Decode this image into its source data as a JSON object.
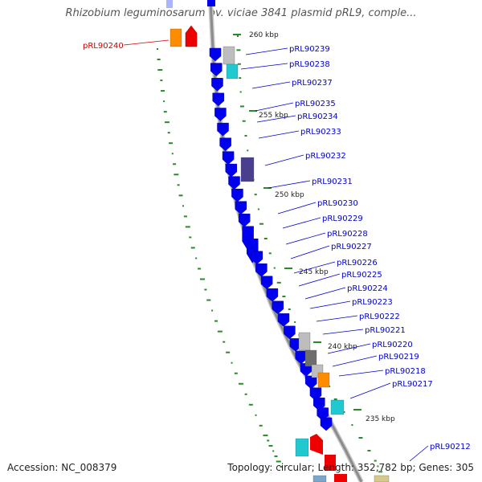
{
  "title": "Rhizobium leguminosarum bv. viciae 3841 plasmid pRL9, comple...",
  "footer": {
    "accession": "Accession: NC_008379",
    "stats": "Topology: circular; Length: 352,782 bp; Genes: 305"
  },
  "ticks": [
    "260 kbp",
    "255 kbp",
    "250 kbp",
    "245 kbp",
    "240 kbp",
    "235 kbp"
  ],
  "colors": {
    "backbone": "#8c8c8c",
    "forward_gene": "#0000ee",
    "highlight_gene": "#ee0000",
    "orange_box": "#ff8c00",
    "cyan_box": "#20c8d0",
    "gray_box": "#bdbdbd",
    "dark_gray_box": "#6e6e6e",
    "purple_box": "#4a3f8f",
    "gc_tick": "#2a8a2a",
    "label_blue": "#0000cc",
    "label_red": "#cc0000"
  },
  "genes": [
    {
      "label": "pRL90240",
      "highlight": true
    },
    {
      "label": "pRL90239"
    },
    {
      "label": "pRL90238"
    },
    {
      "label": "pRL90237"
    },
    {
      "label": "pRL90235"
    },
    {
      "label": "pRL90234"
    },
    {
      "label": "pRL90233"
    },
    {
      "label": "pRL90232"
    },
    {
      "label": "pRL90231"
    },
    {
      "label": "pRL90230"
    },
    {
      "label": "pRL90229"
    },
    {
      "label": "pRL90228"
    },
    {
      "label": "pRL90227"
    },
    {
      "label": "pRL90226"
    },
    {
      "label": "pRL90225"
    },
    {
      "label": "pRL90224"
    },
    {
      "label": "pRL90223"
    },
    {
      "label": "pRL90222"
    },
    {
      "label": "pRL90221"
    },
    {
      "label": "pRL90220"
    },
    {
      "label": "pRL90219"
    },
    {
      "label": "pRL90218"
    },
    {
      "label": "pRL90217"
    },
    {
      "label": "pRL90212"
    }
  ]
}
